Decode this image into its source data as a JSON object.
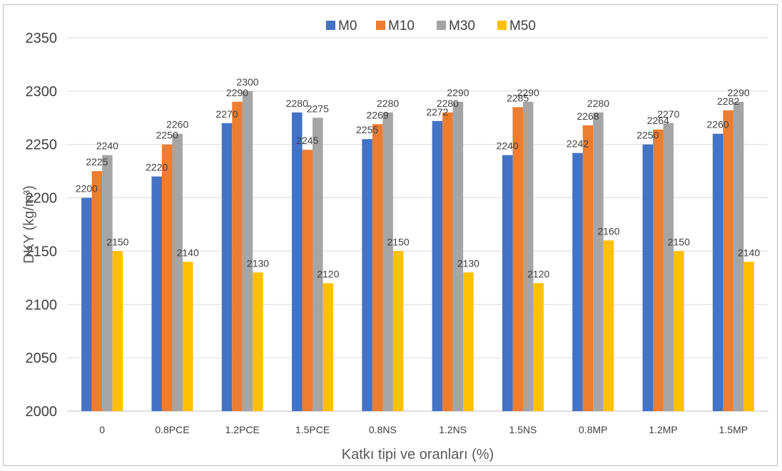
{
  "chart_data": {
    "type": "bar",
    "categories": [
      "0",
      "0.8PCE",
      "1.2PCE",
      "1.5PCE",
      "0.8NS",
      "1.2NS",
      "1.5NS",
      "0.8MP",
      "1.2MP",
      "1.5MP"
    ],
    "series": [
      {
        "name": "M0",
        "color": "#4472C4",
        "values": [
          2200,
          2220,
          2270,
          2280,
          2255,
          2272,
          2240,
          2242,
          2250,
          2260
        ]
      },
      {
        "name": "M10",
        "color": "#ED7D31",
        "values": [
          2225,
          2250,
          2290,
          2245,
          2269,
          2280,
          2285,
          2268,
          2264,
          2282
        ]
      },
      {
        "name": "M30",
        "color": "#A5A5A5",
        "values": [
          2240,
          2260,
          2300,
          2275,
          2280,
          2290,
          2290,
          2280,
          2270,
          2290
        ]
      },
      {
        "name": "M50",
        "color": "#FFC000",
        "values": [
          2150,
          2140,
          2130,
          2120,
          2150,
          2130,
          2120,
          2160,
          2150,
          2140
        ]
      }
    ],
    "xlabel": "Katkı tipi ve oranları (%)",
    "ylabel": "DKY (kg/m³)",
    "ylim": [
      2000,
      2350
    ],
    "yticks": [
      2000,
      2050,
      2100,
      2150,
      2200,
      2250,
      2300,
      2350
    ],
    "grid": true,
    "legend_position": "top-center"
  }
}
